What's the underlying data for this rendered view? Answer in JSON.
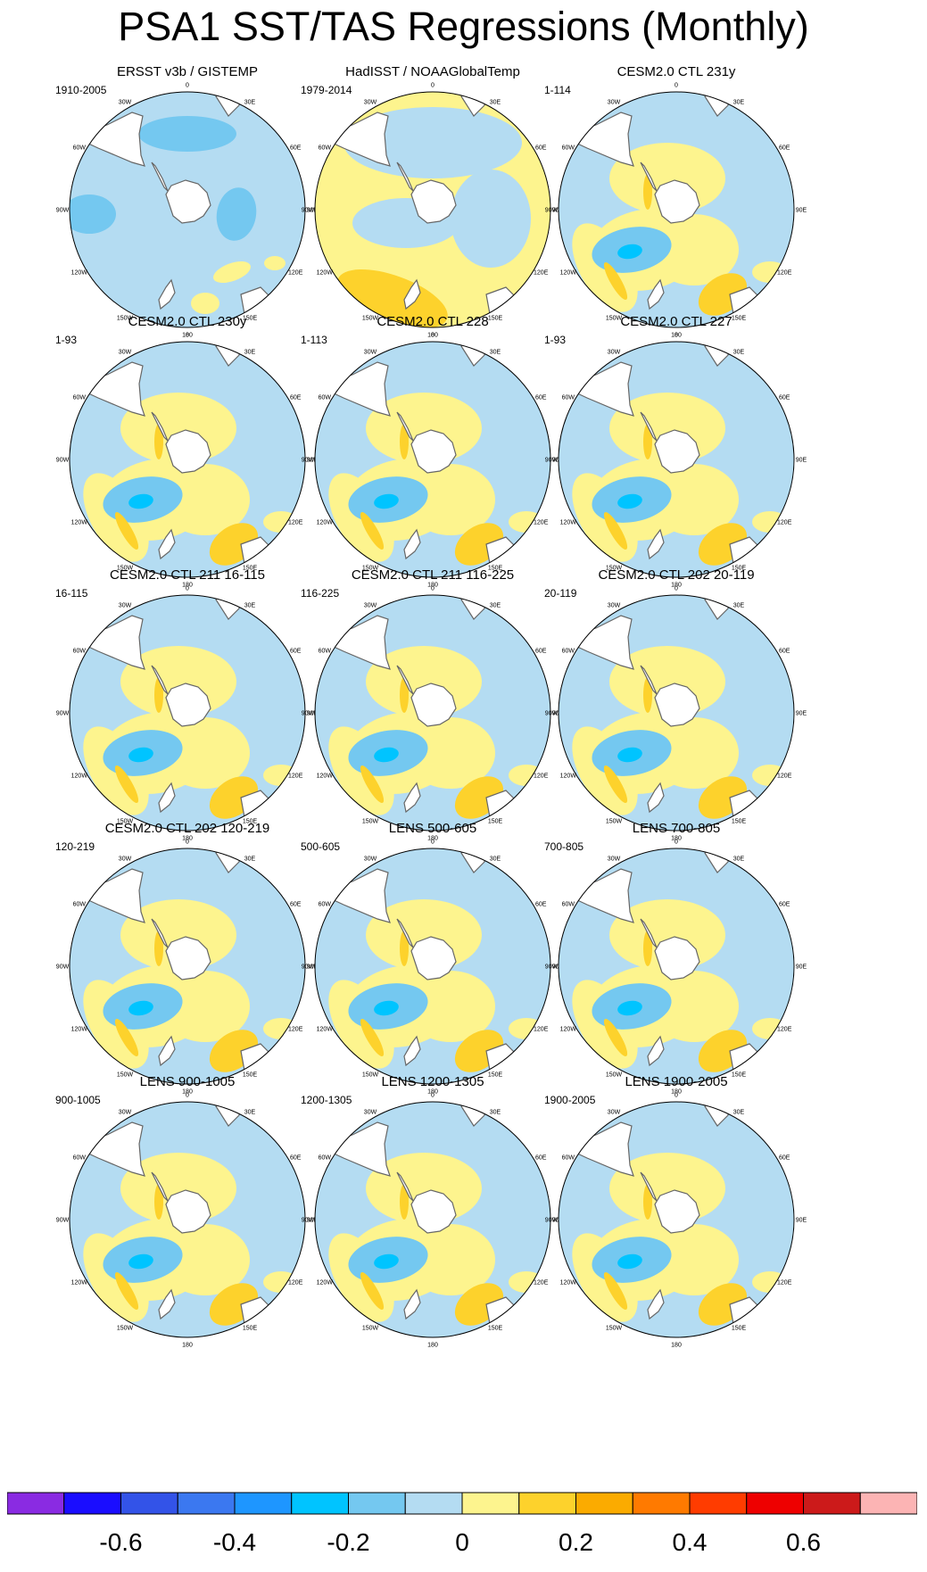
{
  "title": "PSA1 SST/TAS Regressions (Monthly)",
  "lon_labels": [
    "0",
    "30E",
    "60E",
    "90E",
    "120E",
    "150E",
    "180",
    "150W",
    "120W",
    "90W",
    "60W",
    "30W"
  ],
  "panels": [
    {
      "title": "ERSST v3b / GISTEMP",
      "period": "1910-2005",
      "pattern": "obs_ersst"
    },
    {
      "title": "HadISST / NOAAGlobalTemp",
      "period": "1979-2014",
      "pattern": "obs_had"
    },
    {
      "title": "CESM2.0 CTL 231y",
      "period": "1-114",
      "pattern": "model"
    },
    {
      "title": "CESM2.0 CTL 230y",
      "period": "1-93",
      "pattern": "model"
    },
    {
      "title": "CESM2.0 CTL 228",
      "period": "1-113",
      "pattern": "model"
    },
    {
      "title": "CESM2.0 CTL 227",
      "period": "1-93",
      "pattern": "model"
    },
    {
      "title": "CESM2.0 CTL 211 16-115",
      "period": "16-115",
      "pattern": "model"
    },
    {
      "title": "CESM2.0 CTL 211 116-225",
      "period": "116-225",
      "pattern": "model"
    },
    {
      "title": "CESM2.0 CTL 202 20-119",
      "period": "20-119",
      "pattern": "model"
    },
    {
      "title": "CESM2.0 CTL 202 120-219",
      "period": "120-219",
      "pattern": "model"
    },
    {
      "title": "LENS 500-605",
      "period": "500-605",
      "pattern": "model"
    },
    {
      "title": "LENS 700-805",
      "period": "700-805",
      "pattern": "model"
    },
    {
      "title": "LENS 900-1005",
      "period": "900-1005",
      "pattern": "model"
    },
    {
      "title": "LENS 1200-1305",
      "period": "1200-1305",
      "pattern": "model"
    },
    {
      "title": "LENS 1900-2005",
      "period": "1900-2005",
      "pattern": "model"
    }
  ],
  "colorbar": {
    "colors": [
      "#8a2be2",
      "#1a0dff",
      "#3353e8",
      "#3b78f0",
      "#1e96ff",
      "#00c4ff",
      "#74c8f0",
      "#b4dcf2",
      "#fdf48e",
      "#fdd22c",
      "#fbab00",
      "#ff7a00",
      "#ff3c00",
      "#ee0000",
      "#cc1a1a",
      "#fcb4b4"
    ],
    "labels": [
      {
        "text": "-0.6",
        "index": 1
      },
      {
        "text": "-0.4",
        "index": 3
      },
      {
        "text": "-0.2",
        "index": 5
      },
      {
        "text": "0",
        "index": 7
      },
      {
        "text": "0.2",
        "index": 9
      },
      {
        "text": "0.4",
        "index": 11
      },
      {
        "text": "0.6",
        "index": 13
      }
    ]
  }
}
